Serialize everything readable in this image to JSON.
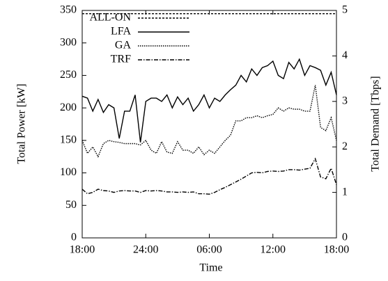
{
  "chart_data": {
    "type": "line",
    "xlabel": "Time",
    "ylabel": "Total Power [kW]",
    "y2label": "Total Demand [Tbps]",
    "x": [
      0,
      0.5,
      1,
      1.5,
      2,
      2.5,
      3,
      3.5,
      4,
      4.5,
      5,
      5.5,
      6,
      6.5,
      7,
      7.5,
      8,
      8.5,
      9,
      9.5,
      10,
      10.5,
      11,
      11.5,
      12,
      12.5,
      13,
      13.5,
      14,
      14.5,
      15,
      15.5,
      16,
      16.5,
      17,
      17.5,
      18,
      18.5,
      19,
      19.5,
      20,
      20.5,
      21,
      21.5,
      22,
      22.5,
      23,
      23.5,
      24
    ],
    "xlim": [
      0,
      24
    ],
    "xticks": [
      {
        "value": 0,
        "label": "18:00"
      },
      {
        "value": 6,
        "label": "24:00"
      },
      {
        "value": 12,
        "label": "06:00"
      },
      {
        "value": 18,
        "label": "12:00"
      },
      {
        "value": 24,
        "label": "18:00"
      }
    ],
    "ylim": [
      0,
      350
    ],
    "yticks": [
      0,
      50,
      100,
      150,
      200,
      250,
      300,
      350
    ],
    "y2lim": [
      0,
      5
    ],
    "y2ticks": [
      0,
      1,
      2,
      3,
      4,
      5
    ],
    "legend": "upper left",
    "series": [
      {
        "name": "ALL-ON",
        "color": "#000000",
        "dash": "3,2",
        "values": [
          345,
          345,
          345,
          345,
          345,
          345,
          345,
          345,
          345,
          345,
          345,
          345,
          345,
          345,
          345,
          345,
          345,
          345,
          345,
          345,
          345,
          345,
          345,
          345,
          345,
          345,
          345,
          345,
          345,
          345,
          345,
          345,
          345,
          345,
          345,
          345,
          345,
          345,
          345,
          345,
          345,
          345,
          345,
          345,
          345,
          345,
          345,
          345,
          345
        ]
      },
      {
        "name": "LFA",
        "color": "#000000",
        "dash": "none",
        "values": [
          218,
          215,
          195,
          213,
          193,
          205,
          200,
          153,
          195,
          195,
          220,
          147,
          210,
          215,
          215,
          210,
          220,
          200,
          217,
          205,
          215,
          195,
          205,
          220,
          200,
          215,
          210,
          220,
          228,
          235,
          250,
          240,
          260,
          250,
          262,
          265,
          272,
          250,
          245,
          270,
          260,
          275,
          250,
          265,
          262,
          258,
          235,
          255,
          220
        ]
      },
      {
        "name": "GA",
        "color": "#000000",
        "dash": "1.5,1.5",
        "values": [
          150,
          130,
          140,
          125,
          145,
          150,
          148,
          147,
          145,
          145,
          145,
          143,
          150,
          135,
          130,
          148,
          132,
          130,
          148,
          135,
          135,
          130,
          140,
          128,
          135,
          130,
          140,
          150,
          158,
          180,
          180,
          185,
          185,
          188,
          185,
          188,
          190,
          200,
          195,
          200,
          198,
          198,
          195,
          195,
          235,
          170,
          165,
          185,
          150
        ]
      },
      {
        "name": "TRF",
        "color": "#000000",
        "dash": "6,2,1.5,2",
        "axis": "y2",
        "values": [
          1.07,
          0.97,
          1.0,
          1.07,
          1.04,
          1.03,
          1.0,
          1.03,
          1.04,
          1.03,
          1.03,
          1.0,
          1.04,
          1.03,
          1.04,
          1.03,
          1.01,
          1.01,
          1.0,
          1.01,
          1.0,
          1.01,
          0.97,
          0.97,
          0.96,
          1.0,
          1.06,
          1.11,
          1.17,
          1.23,
          1.29,
          1.36,
          1.43,
          1.44,
          1.43,
          1.46,
          1.47,
          1.46,
          1.47,
          1.5,
          1.5,
          1.49,
          1.51,
          1.53,
          1.74,
          1.34,
          1.3,
          1.53,
          1.17
        ]
      }
    ]
  }
}
